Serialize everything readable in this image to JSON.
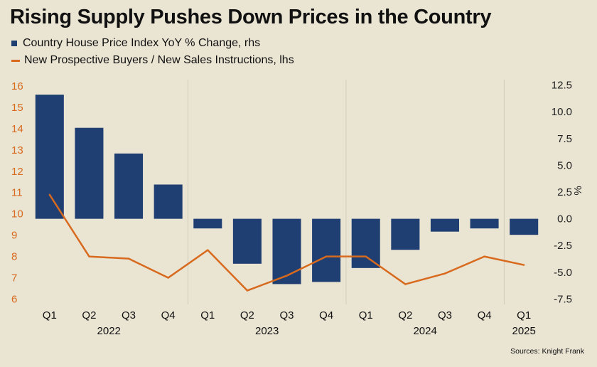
{
  "title": "Rising Supply Pushes Down Prices in the Country",
  "source": "Sources: Knight Frank",
  "colors": {
    "bar": "#1f3f73",
    "line": "#d86a1e",
    "background": "#eae4d3",
    "grid": "#d2cbb9"
  },
  "chart_data": {
    "type": "bar",
    "categories": [
      "Q1",
      "Q2",
      "Q3",
      "Q4",
      "Q1",
      "Q2",
      "Q3",
      "Q4",
      "Q1",
      "Q2",
      "Q3",
      "Q4",
      "Q1"
    ],
    "year_labels": [
      "2022",
      "2023",
      "2024",
      "2025"
    ],
    "series": [
      {
        "name": "Country House Price Index YoY % Change, rhs",
        "type": "bar",
        "axis": "right",
        "values": [
          11.6,
          8.5,
          6.1,
          3.2,
          -0.9,
          -4.2,
          -6.1,
          -5.9,
          -4.6,
          -2.9,
          -1.2,
          -0.9,
          -1.5
        ]
      },
      {
        "name": "New Prospective Buyers / New Sales Instructions, lhs",
        "type": "line",
        "axis": "left",
        "values": [
          10.9,
          8.0,
          7.9,
          7.0,
          8.3,
          6.4,
          7.1,
          8.0,
          8.0,
          6.7,
          7.2,
          8.0,
          7.6
        ]
      }
    ],
    "left_axis": {
      "ticks": [
        "16",
        "15",
        "14",
        "13",
        "12",
        "11",
        "10",
        "9",
        "8",
        "7",
        "6"
      ],
      "range": [
        5.75,
        16.3
      ]
    },
    "right_axis": {
      "ticks": [
        "12.5",
        "10.0",
        "7.5",
        "5.0",
        "2.5",
        "0.0",
        "-2.5",
        "-5.0",
        "-7.5"
      ],
      "range": [
        -8.0,
        13.0
      ],
      "unit": "%"
    },
    "grid": "vertical year separators",
    "legend": "top-left"
  }
}
